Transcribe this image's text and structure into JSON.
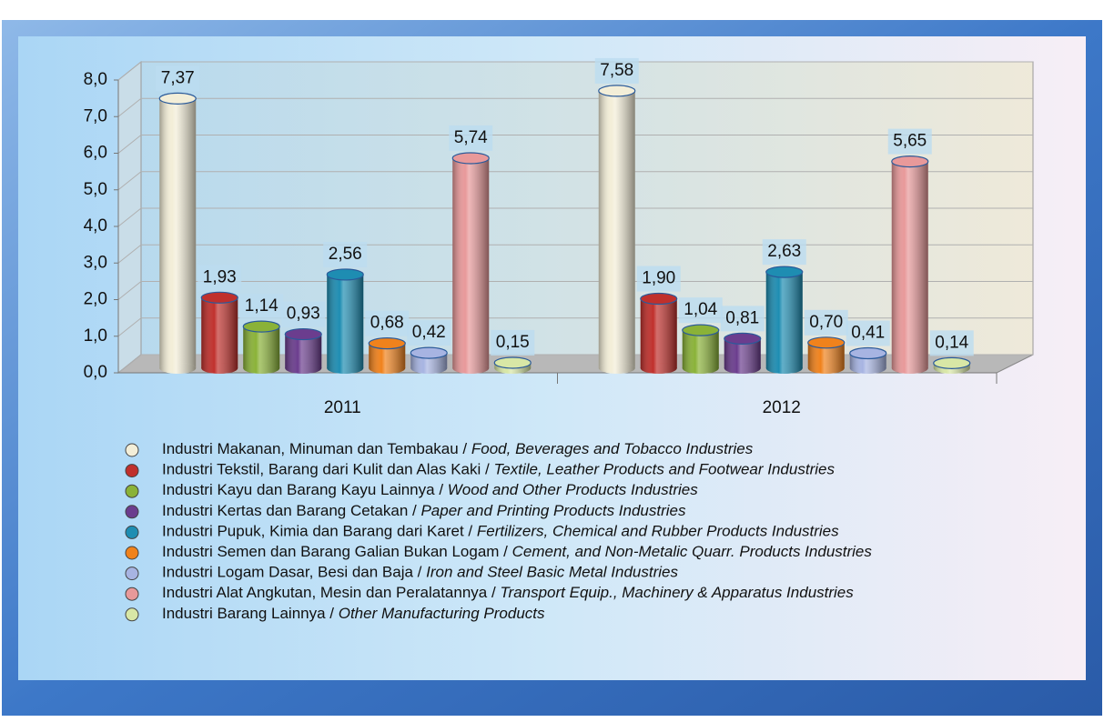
{
  "chart_data": {
    "type": "bar3d",
    "categories": [
      "2011",
      "2012"
    ],
    "series": [
      {
        "name": "Industri Makanan, Minuman dan Tembakau / Food, Beverages and Tobacco Industries",
        "color": "#f3eed8",
        "values": [
          7.37,
          7.58
        ],
        "value_labels": [
          "7,37",
          "7,58"
        ]
      },
      {
        "name": "Industri Tekstil, Barang dari Kulit dan Alas Kaki / Textile, Leather Products and Footwear Industries",
        "color": "#c0302c",
        "values": [
          1.93,
          1.9
        ],
        "value_labels": [
          "1,93",
          "1,90"
        ]
      },
      {
        "name": "Industri Kayu dan Barang Kayu Lainnya / Wood and Other Products Industries",
        "color": "#8ab238",
        "values": [
          1.14,
          1.04
        ],
        "value_labels": [
          "1,14",
          "1,04"
        ]
      },
      {
        "name": "Industri Kertas dan Barang Cetakan / Paper and Printing Products Industries",
        "color": "#6b3d8e",
        "values": [
          0.93,
          0.81
        ],
        "value_labels": [
          "0,93",
          "0,81"
        ]
      },
      {
        "name": "Industri Pupuk, Kimia dan Barang dari Karet / Fertilizers, Chemical and Rubber Products Industries",
        "color": "#1e8db2",
        "values": [
          2.56,
          2.63
        ],
        "value_labels": [
          "2,56",
          "2,63"
        ]
      },
      {
        "name": "Industri Semen dan Barang Galian Bukan Logam / Cement, and Non-Metalic Quarr. Products Industries",
        "color": "#f0821c",
        "values": [
          0.68,
          0.7
        ],
        "value_labels": [
          "0,68",
          "0,70"
        ]
      },
      {
        "name": "Industri Logam Dasar, Besi dan Baja / Iron and Steel Basic Metal Industries",
        "color": "#a7b4e2",
        "values": [
          0.42,
          0.41
        ],
        "value_labels": [
          "0,42",
          "0,41"
        ]
      },
      {
        "name": "Industri Alat Angkutan, Mesin dan Peralatannya / Transport Equip., Machinery & Apparatus Industries",
        "color": "#e8999a",
        "values": [
          5.74,
          5.65
        ],
        "value_labels": [
          "5,74",
          "5,65"
        ]
      },
      {
        "name": "Industri Barang Lainnya / Other Manufacturing Products",
        "color": "#d8e7a6",
        "values": [
          0.15,
          0.14
        ],
        "value_labels": [
          "0,15",
          "0,14"
        ]
      }
    ],
    "ylim": [
      0,
      8
    ],
    "yticks": [
      {
        "value": 0,
        "label": "0,0"
      },
      {
        "value": 1,
        "label": "1,0"
      },
      {
        "value": 2,
        "label": "2,0"
      },
      {
        "value": 3,
        "label": "3,0"
      },
      {
        "value": 4,
        "label": "4,0"
      },
      {
        "value": 5,
        "label": "5,0"
      },
      {
        "value": 6,
        "label": "6,0"
      },
      {
        "value": 7,
        "label": "7,0"
      },
      {
        "value": 8,
        "label": "8,0"
      }
    ],
    "grid": true
  }
}
